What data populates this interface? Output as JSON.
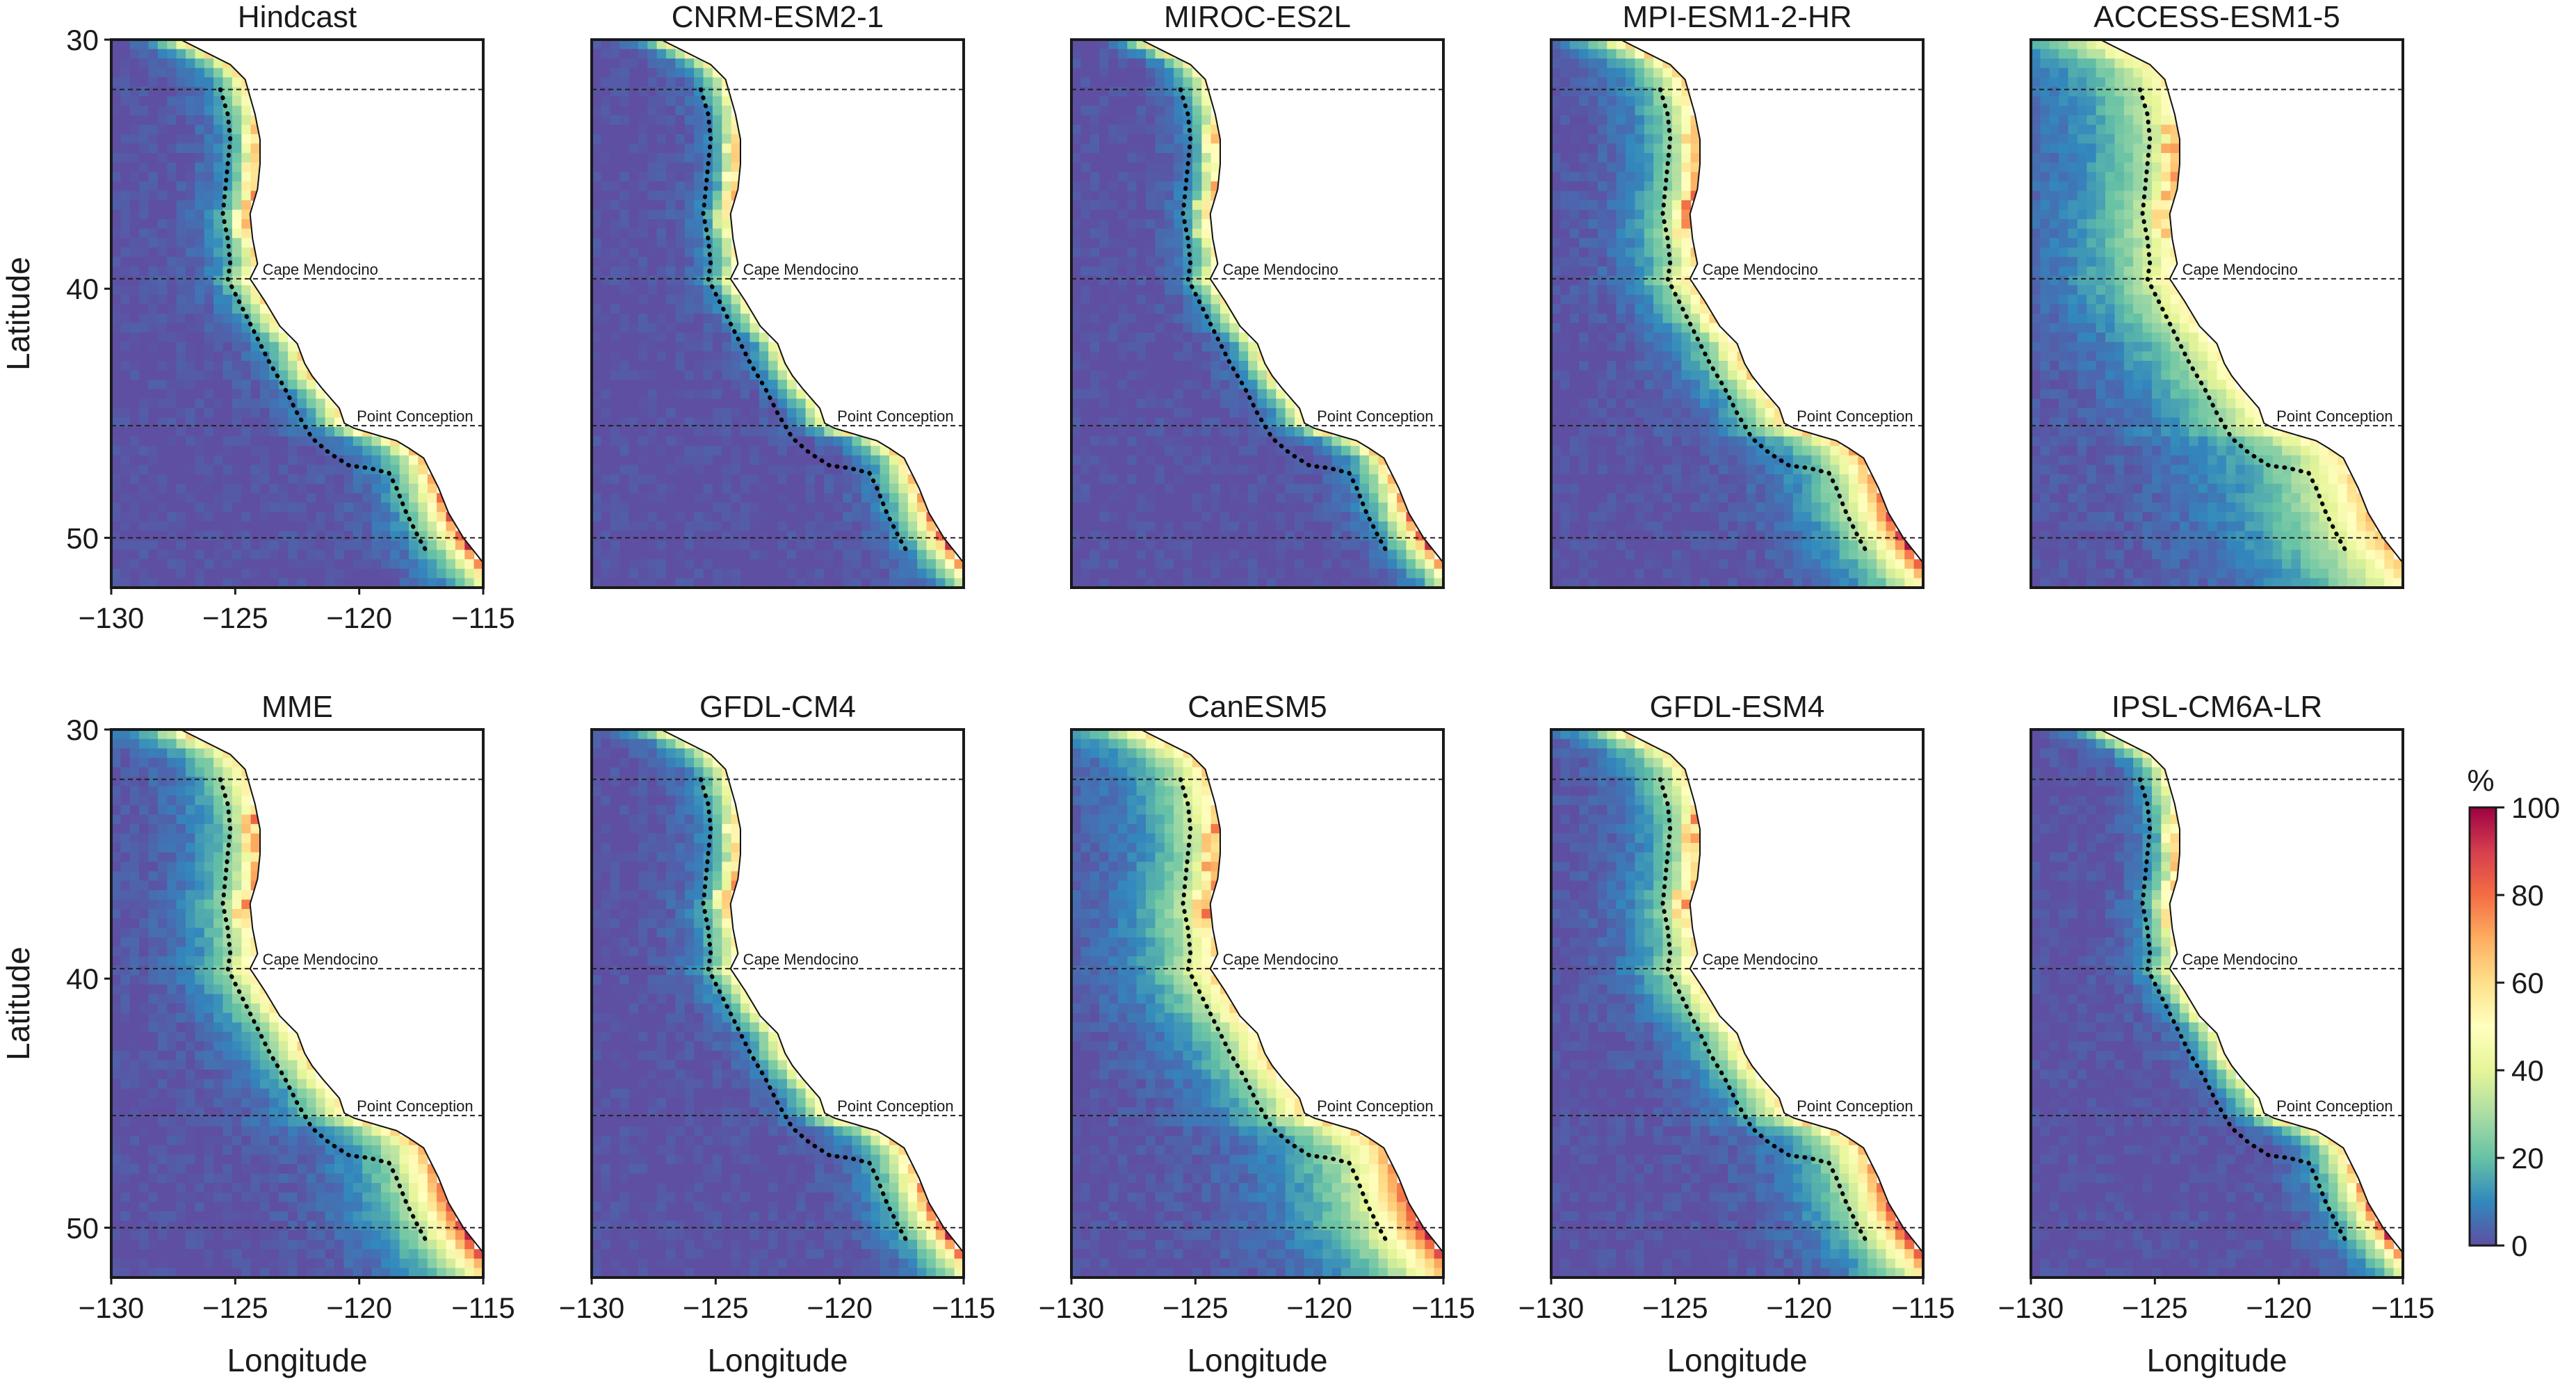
{
  "figure": {
    "panel_titles": [
      "Hindcast",
      "CNRM-ESM2-1",
      "MIROC-ES2L",
      "MPI-ESM1-2-HR",
      "ACCESS-ESM1-5",
      "MME",
      "GFDL-CM4",
      "CanESM5",
      "GFDL-ESM4",
      "IPSL-CM6A-LR"
    ],
    "x_axis_label": "Longitude",
    "y_axis_label": "Latitude",
    "x_ticks": [
      "−130",
      "−125",
      "−120",
      "−115"
    ],
    "y_ticks": [
      "50",
      "40",
      "30"
    ],
    "place_labels": [
      "Cape Mendocino",
      "Point Conception"
    ],
    "colorbar": {
      "unit": "%",
      "ticks": [
        "0",
        "20",
        "40",
        "60",
        "80",
        "100"
      ],
      "colormap": "Spectral_r",
      "range": [
        0,
        100
      ]
    }
  },
  "chart_data": {
    "type": "heatmap",
    "x_range": [
      -130,
      -115
    ],
    "y_range": [
      28,
      50
    ],
    "x_ticks": [
      -130,
      -125,
      -120,
      -115
    ],
    "y_ticks": [
      30,
      40,
      50
    ],
    "reference_latitudes": [
      30,
      34.5,
      40.4,
      48
    ],
    "value_range": [
      0,
      100
    ],
    "unit": "%",
    "panels": [
      {
        "title": "Hindcast",
        "offshore_extent": 2.0,
        "coastal_peak": 62,
        "southern_peak": 95
      },
      {
        "title": "CNRM-ESM2-1",
        "offshore_extent": 1.6,
        "coastal_peak": 55,
        "southern_peak": 95
      },
      {
        "title": "MIROC-ES2L",
        "offshore_extent": 1.6,
        "coastal_peak": 58,
        "southern_peak": 95
      },
      {
        "title": "MPI-ESM1-2-HR",
        "offshore_extent": 3.0,
        "coastal_peak": 65,
        "southern_peak": 95
      },
      {
        "title": "ACCESS-ESM1-5",
        "offshore_extent": 5.5,
        "coastal_peak": 55,
        "southern_peak": 70
      },
      {
        "title": "MME",
        "offshore_extent": 3.2,
        "coastal_peak": 60,
        "southern_peak": 95
      },
      {
        "title": "GFDL-CM4",
        "offshore_extent": 2.0,
        "coastal_peak": 55,
        "southern_peak": 95
      },
      {
        "title": "CanESM5",
        "offshore_extent": 4.2,
        "coastal_peak": 62,
        "southern_peak": 95
      },
      {
        "title": "GFDL-ESM4",
        "offshore_extent": 3.0,
        "coastal_peak": 60,
        "southern_peak": 95
      },
      {
        "title": "IPSL-CM6A-LR",
        "offshore_extent": 1.8,
        "coastal_peak": 55,
        "southern_peak": 95
      }
    ]
  }
}
